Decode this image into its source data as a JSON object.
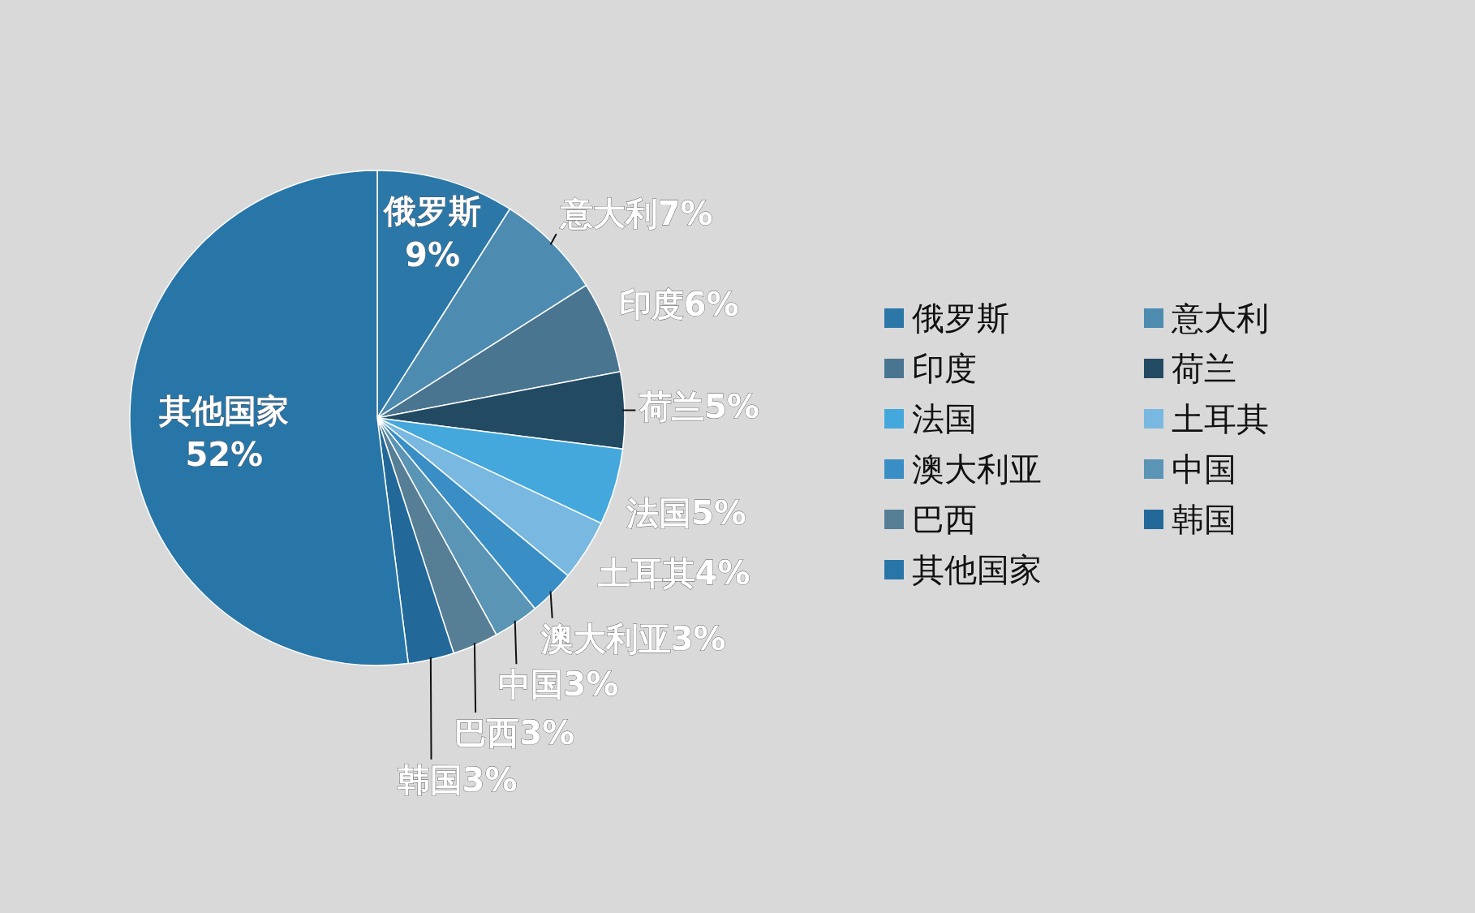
{
  "chart_data": {
    "type": "pie",
    "categories": [
      "俄罗斯",
      "意大利",
      "印度",
      "荷兰",
      "法国",
      "土耳其",
      "澳大利亚",
      "中国",
      "巴西",
      "韩国",
      "其他国家"
    ],
    "values": [
      9,
      7,
      6,
      5,
      5,
      4,
      3,
      3,
      3,
      3,
      52
    ],
    "colors": [
      "#2b78a8",
      "#4d8bb0",
      "#4a7590",
      "#234a63",
      "#44a8dc",
      "#79b8e0",
      "#3a8ec6",
      "#5a95b5",
      "#567f96",
      "#22699a",
      "#2876a8"
    ],
    "value_labels": [
      "俄罗斯\n9%",
      "意大利7%",
      "印度6%",
      "荷兰5%",
      "法国5%",
      "土耳其4%",
      "澳大利亚3%",
      "中国3%",
      "巴西3%",
      "韩国3%",
      "其他国家\n52%"
    ],
    "legend": "right"
  }
}
